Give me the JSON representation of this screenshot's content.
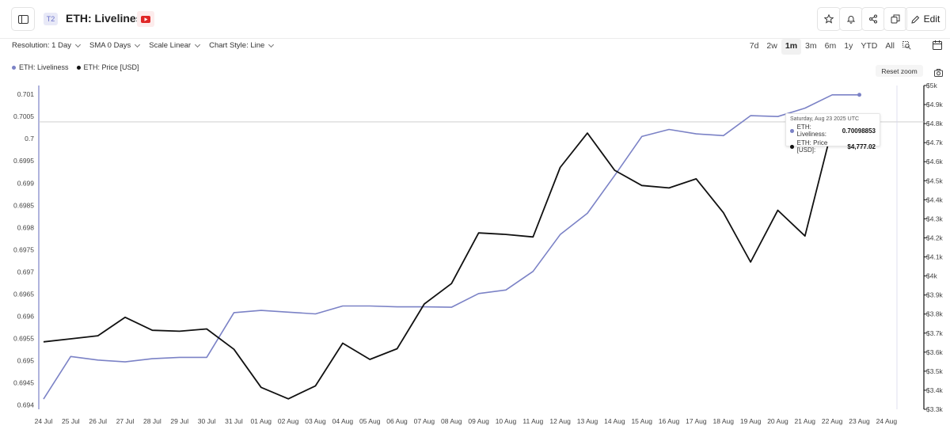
{
  "header": {
    "badge": "T2",
    "title": "ETH: Liveliness",
    "edit_label": "Edit"
  },
  "toolbar": {
    "resolution": "Resolution: 1 Day",
    "sma": "SMA 0 Days",
    "scale": "Scale Linear",
    "style": "Chart Style: Line"
  },
  "ranges": [
    "7d",
    "2w",
    "1m",
    "3m",
    "6m",
    "1y",
    "YTD",
    "All"
  ],
  "active_range": "1m",
  "legend": [
    {
      "label": "ETH: Liveliness",
      "color": "#7b82c6"
    },
    {
      "label": "ETH: Price [USD]",
      "color": "#111111"
    }
  ],
  "reset_zoom": "Reset zoom",
  "tooltip": {
    "date": "Saturday, Aug 23 2025 UTC",
    "liveliness_label": "ETH: Liveliness:",
    "liveliness_value": "0.70098853",
    "price_label": "ETH: Price [USD]:",
    "price_value": "$4,777.02"
  },
  "chart_data": {
    "type": "line",
    "categories": [
      "24 Jul",
      "25 Jul",
      "26 Jul",
      "27 Jul",
      "28 Jul",
      "29 Jul",
      "30 Jul",
      "31 Jul",
      "01 Aug",
      "02 Aug",
      "03 Aug",
      "04 Aug",
      "05 Aug",
      "06 Aug",
      "07 Aug",
      "08 Aug",
      "09 Aug",
      "10 Aug",
      "11 Aug",
      "12 Aug",
      "13 Aug",
      "14 Aug",
      "15 Aug",
      "16 Aug",
      "17 Aug",
      "18 Aug",
      "19 Aug",
      "20 Aug",
      "21 Aug",
      "22 Aug",
      "23 Aug"
    ],
    "x_extra_tick": "24 Aug",
    "series": [
      {
        "name": "ETH: Liveliness",
        "color": "#7b82c6",
        "axis": "left",
        "values": [
          0.69413,
          0.69509,
          0.69501,
          0.69497,
          0.69504,
          0.69507,
          0.69507,
          0.69608,
          0.69613,
          0.69609,
          0.69605,
          0.69623,
          0.69623,
          0.69621,
          0.69621,
          0.6962,
          0.69651,
          0.69659,
          0.69701,
          0.69784,
          0.69832,
          0.69917,
          0.70005,
          0.70021,
          0.70011,
          0.70007,
          0.70052,
          0.7005,
          0.70069,
          0.70099,
          0.70099
        ]
      },
      {
        "name": "ETH: Price [USD]",
        "color": "#111111",
        "axis": "right",
        "values": [
          3654,
          3670,
          3686,
          3783,
          3715,
          3710,
          3722,
          3615,
          3415,
          3355,
          3423,
          3647,
          3562,
          3618,
          3853,
          3960,
          4226,
          4218,
          4205,
          4570,
          4750,
          4555,
          4475,
          4462,
          4510,
          4332,
          4073,
          4345,
          4210,
          4777,
          4777
        ]
      }
    ],
    "left_axis": {
      "min": 0.6939,
      "max": 0.7012,
      "ticks": [
        "0.694",
        "0.6945",
        "0.695",
        "0.6955",
        "0.696",
        "0.6965",
        "0.697",
        "0.6975",
        "0.698",
        "0.6985",
        "0.699",
        "0.6995",
        "0.7",
        "0.7005",
        "0.701"
      ],
      "tick_values": [
        0.694,
        0.6945,
        0.695,
        0.6955,
        0.696,
        0.6965,
        0.697,
        0.6975,
        0.698,
        0.6985,
        0.699,
        0.6995,
        0.7,
        0.7005,
        0.701
      ]
    },
    "right_axis": {
      "min": 3300,
      "max": 5000,
      "ticks": [
        "$3.3k",
        "$3.4k",
        "$3.5k",
        "$3.6k",
        "$3.7k",
        "$3.8k",
        "$3.9k",
        "$4k",
        "$4.1k",
        "$4.2k",
        "$4.3k",
        "$4.4k",
        "$4.5k",
        "$4.6k",
        "$4.7k",
        "$4.8k",
        "$4.9k",
        "$5k"
      ],
      "tick_values": [
        3300,
        3400,
        3500,
        3600,
        3700,
        3800,
        3900,
        4000,
        4100,
        4200,
        4300,
        4400,
        4500,
        4600,
        4700,
        4800,
        4900,
        5000
      ]
    },
    "crosshair_value": 0.70038,
    "grid": false,
    "legend_position": "top-left"
  }
}
